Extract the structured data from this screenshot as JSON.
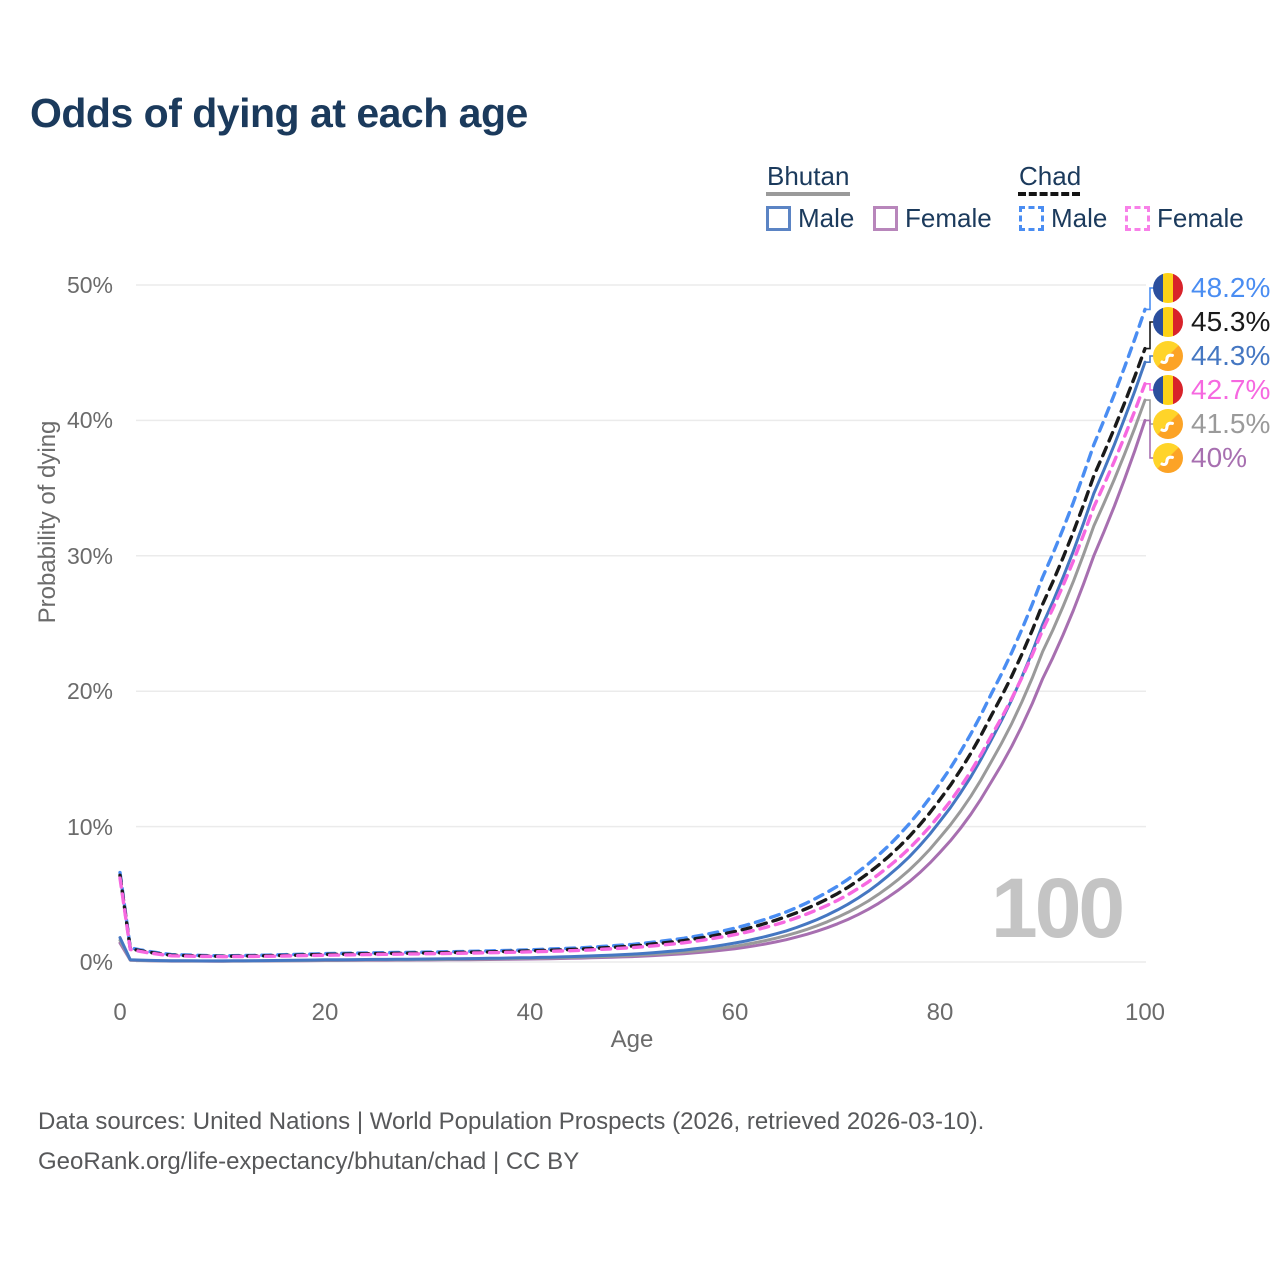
{
  "title": "Odds of dying at each age",
  "watermark": "100",
  "colors": {
    "title": "#1b3a5c",
    "grid": "#ebebeb",
    "tick_text": "#6b6b6b",
    "footer_text": "#57585a",
    "watermark": "#c4c4c4",
    "bhutan_male": "#4577c2",
    "bhutan_female": "#a76fb0",
    "bhutan_both": "#9a9a9a",
    "chad_male": "#4a8df2",
    "chad_female": "#f668e0",
    "chad_both": "#1a1a1a"
  },
  "legend": {
    "groups": [
      {
        "name": "Bhutan",
        "underline": "solid",
        "items": [
          {
            "label": "Male",
            "color": "#4577c2",
            "dash": false
          },
          {
            "label": "Female",
            "color": "#b886bb",
            "dash": false
          }
        ]
      },
      {
        "name": "Chad",
        "underline": "dashed",
        "items": [
          {
            "label": "Male",
            "color": "#4a8df2",
            "dash": true
          },
          {
            "label": "Female",
            "color": "#f880e8",
            "dash": true
          }
        ]
      }
    ]
  },
  "end_labels": [
    {
      "value": "48.2%",
      "flag": "chad",
      "color": "#4a8df2",
      "series": 3
    },
    {
      "value": "45.3%",
      "flag": "chad",
      "color": "#1a1a1a",
      "series": 4
    },
    {
      "value": "44.3%",
      "flag": "bhutan",
      "color": "#4577c2",
      "series": 2
    },
    {
      "value": "42.7%",
      "flag": "chad",
      "color": "#f668e0",
      "series": 5
    },
    {
      "value": "41.5%",
      "flag": "bhutan",
      "color": "#9a9a9a",
      "series": 1
    },
    {
      "value": "40%",
      "flag": "bhutan",
      "color": "#a76fb0",
      "series": 0
    }
  ],
  "footer": [
    "Data sources: United Nations | World Population Prospects (2026, retrieved 2026-03-10).",
    "GeoRank.org/life-expectancy/bhutan/chad | CC BY"
  ],
  "chart_data": {
    "type": "line",
    "title": "Odds of dying at each age",
    "xlabel": "Age",
    "ylabel": "Probability of dying",
    "xlim": [
      0,
      100
    ],
    "ylim": [
      0,
      50
    ],
    "x_ticks": [
      "0",
      "20",
      "40",
      "60",
      "80",
      "100"
    ],
    "x_tick_values": [
      0,
      20,
      40,
      60,
      80,
      100
    ],
    "y_ticks": [
      "0%",
      "10%",
      "20%",
      "30%",
      "40%",
      "50%"
    ],
    "y_tick_values": [
      0,
      10,
      20,
      30,
      40,
      50
    ],
    "grid": true,
    "legend_position": "top-right",
    "x": [
      0,
      1,
      5,
      10,
      15,
      20,
      25,
      30,
      35,
      40,
      45,
      50,
      55,
      60,
      65,
      70,
      75,
      80,
      85,
      90,
      95,
      100
    ],
    "units": "percent probability of dying at each age",
    "series": [
      {
        "name": "Bhutan Female",
        "color": "#a76fb0",
        "dash": false,
        "values": [
          1.4,
          0.13,
          0.07,
          0.06,
          0.08,
          0.11,
          0.13,
          0.15,
          0.18,
          0.22,
          0.29,
          0.4,
          0.61,
          0.98,
          1.65,
          2.82,
          4.82,
          8.1,
          13.3,
          20.9,
          30.0,
          40.0
        ]
      },
      {
        "name": "Bhutan",
        "color": "#9a9a9a",
        "dash": false,
        "values": [
          1.6,
          0.14,
          0.08,
          0.07,
          0.09,
          0.13,
          0.16,
          0.18,
          0.22,
          0.27,
          0.35,
          0.48,
          0.73,
          1.17,
          1.95,
          3.3,
          5.55,
          9.2,
          14.8,
          22.9,
          32.2,
          41.5
        ]
      },
      {
        "name": "Bhutan Male",
        "color": "#4577c2",
        "dash": false,
        "values": [
          1.8,
          0.16,
          0.09,
          0.08,
          0.11,
          0.16,
          0.19,
          0.22,
          0.26,
          0.32,
          0.42,
          0.58,
          0.88,
          1.4,
          2.3,
          3.85,
          6.4,
          10.4,
          16.4,
          24.9,
          34.6,
          44.3
        ]
      },
      {
        "name": "Chad Male",
        "color": "#4a8df2",
        "dash": true,
        "values": [
          6.6,
          1.05,
          0.55,
          0.45,
          0.52,
          0.62,
          0.68,
          0.73,
          0.8,
          0.9,
          1.05,
          1.3,
          1.75,
          2.5,
          3.7,
          5.6,
          8.6,
          13.2,
          19.8,
          28.4,
          38.2,
          48.2
        ]
      },
      {
        "name": "Chad",
        "color": "#1a1a1a",
        "dash": true,
        "values": [
          6.4,
          0.98,
          0.5,
          0.42,
          0.47,
          0.56,
          0.62,
          0.67,
          0.73,
          0.82,
          0.95,
          1.18,
          1.58,
          2.25,
          3.35,
          5.05,
          7.8,
          12.0,
          18.2,
          26.4,
          35.9,
          45.3
        ]
      },
      {
        "name": "Chad Female",
        "color": "#f668e0",
        "dash": true,
        "values": [
          6.2,
          0.92,
          0.46,
          0.39,
          0.43,
          0.5,
          0.56,
          0.61,
          0.67,
          0.75,
          0.86,
          1.06,
          1.42,
          2.02,
          3.0,
          4.55,
          7.05,
          10.9,
          16.7,
          24.5,
          33.6,
          42.7
        ]
      }
    ]
  }
}
